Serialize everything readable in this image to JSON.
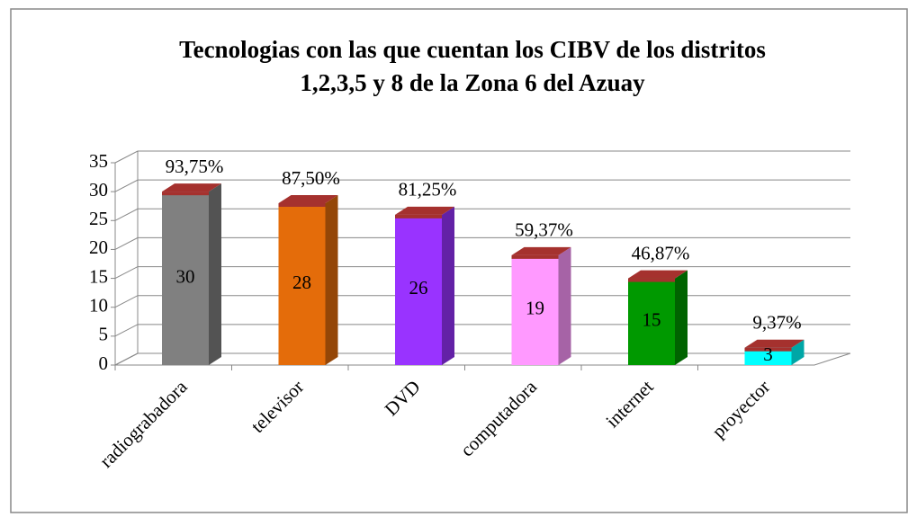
{
  "chart_data": {
    "type": "bar3d",
    "title": "Tecnologias con las que cuentan los CIBV de los distritos",
    "subtitle": "1,2,3,5 y 8 de la Zona 6 del Azuay",
    "categories": [
      "radiograbadora",
      "televisor",
      "DVD",
      "computadora",
      "internet",
      "proyector"
    ],
    "values": [
      30,
      28,
      26,
      19,
      15,
      3
    ],
    "annotations": [
      "93,75%",
      "87,50%",
      "81,25%",
      "59,37%",
      "46,87%",
      "9,37%"
    ],
    "colors": [
      "#808080",
      "#e46c0a",
      "#9933ff",
      "#ff99ff",
      "#009900",
      "#00ffff"
    ],
    "top_color": "#a5312e",
    "ylim": [
      0,
      35
    ],
    "yticks": [
      0,
      5,
      10,
      15,
      20,
      25,
      30,
      35
    ],
    "grid": true
  }
}
